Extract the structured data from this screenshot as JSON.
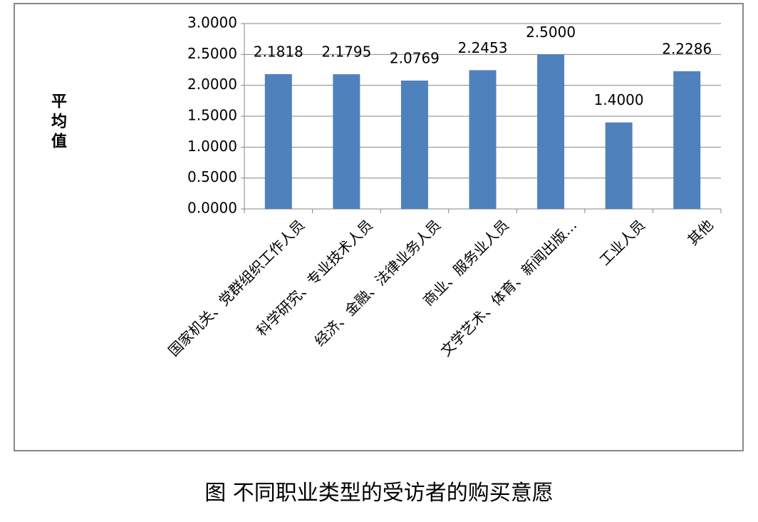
{
  "chart_data": {
    "type": "bar",
    "title": "图 不同职业类型的受访者的购买意愿",
    "y_label": "平均值",
    "categories": [
      "国家机关、党群组织工作人员",
      "科学研究、专业技术人员",
      "经济、金融、法律业务人员",
      "商业、服务业人员",
      "文学艺术、体育、新闻出版…",
      "工业人员",
      "其他"
    ],
    "values": [
      2.1818,
      2.1795,
      2.0769,
      2.2453,
      2.5,
      1.4,
      2.2286
    ],
    "value_labels": [
      "2.1818",
      "2.1795",
      "2.0769",
      "2.2453",
      "2.5000",
      "1.4000",
      "2.2286"
    ],
    "color": "#4f81bd",
    "ylim": [
      0,
      3
    ],
    "yticks": [
      {
        "value": 0,
        "label": "0.0000"
      },
      {
        "value": 0.5,
        "label": "0.5000"
      },
      {
        "value": 1,
        "label": "1.0000"
      },
      {
        "value": 1.5,
        "label": "1.5000"
      },
      {
        "value": 2,
        "label": "2.0000"
      },
      {
        "value": 2.5,
        "label": "2.5000"
      },
      {
        "value": 3,
        "label": "3.0000"
      }
    ],
    "grid": true
  }
}
